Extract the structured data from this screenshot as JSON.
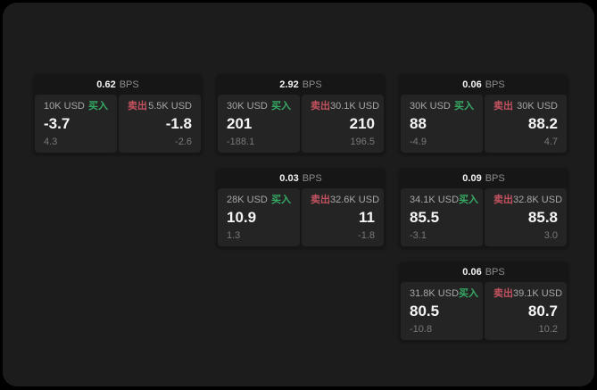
{
  "colors": {
    "page_bg": "#000000",
    "window_bg": "#1c1c1c",
    "card_bg": "#161616",
    "panel_bg": "#242424",
    "buy_green": "#35aa64",
    "sell_red": "#c2525f",
    "value_white": "#f5f5f5",
    "amount_grey": "#a6a6a6",
    "delta_grey": "#787878",
    "bps_grey": "#8c8c8c"
  },
  "labels": {
    "bps": "BPS",
    "buy": "买入",
    "sell": "卖出"
  },
  "cards": [
    {
      "bps": "0.62",
      "buy": {
        "amount": "10K USD",
        "price": "-3.7",
        "delta": "4.3"
      },
      "sell": {
        "amount": "5.5K USD",
        "price": "-1.8",
        "delta": "-2.6"
      }
    },
    {
      "bps": "2.92",
      "buy": {
        "amount": "30K USD",
        "price": "201",
        "delta": "-188.1"
      },
      "sell": {
        "amount": "30.1K USD",
        "price": "210",
        "delta": "196.5"
      }
    },
    {
      "bps": "0.06",
      "buy": {
        "amount": "30K USD",
        "price": "88",
        "delta": "-4.9"
      },
      "sell": {
        "amount": "30K USD",
        "price": "88.2",
        "delta": "4.7"
      }
    },
    {
      "bps": "0.03",
      "buy": {
        "amount": "28K USD",
        "price": "10.9",
        "delta": "1.3"
      },
      "sell": {
        "amount": "32.6K USD",
        "price": "11",
        "delta": "-1.8"
      }
    },
    {
      "bps": "0.09",
      "buy": {
        "amount": "34.1K USD",
        "price": "85.5",
        "delta": "-3.1"
      },
      "sell": {
        "amount": "32.8K USD",
        "price": "85.8",
        "delta": "3.0"
      }
    },
    {
      "bps": "0.06",
      "buy": {
        "amount": "31.8K USD",
        "price": "80.5",
        "delta": "-10.8"
      },
      "sell": {
        "amount": "39.1K USD",
        "price": "80.7",
        "delta": "10.2"
      }
    }
  ]
}
